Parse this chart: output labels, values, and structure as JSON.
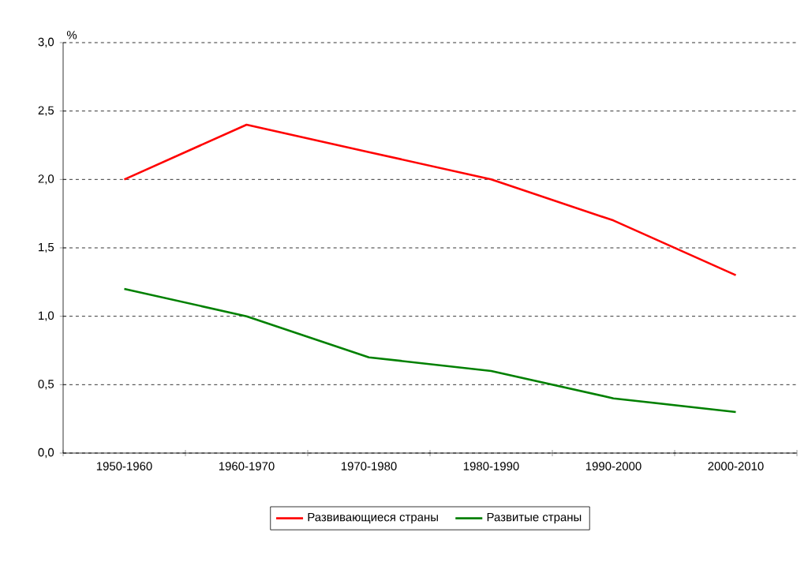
{
  "chart_data": {
    "type": "line",
    "ylabel": "%",
    "categories": [
      "1950-1960",
      "1960-1970",
      "1970-1980",
      "1980-1990",
      "1990-2000",
      "2000-2010"
    ],
    "series": [
      {
        "name": "Развивающиеся страны",
        "color": "#ff0000",
        "values": [
          2.0,
          2.4,
          2.2,
          2.0,
          1.7,
          1.3
        ]
      },
      {
        "name": "Развитые страны",
        "color": "#008000",
        "values": [
          1.2,
          1.0,
          0.7,
          0.6,
          0.4,
          0.3
        ]
      }
    ],
    "ylim": [
      0,
      3
    ],
    "yticks": [
      {
        "value": 0,
        "label": "0,0"
      },
      {
        "value": 0.5,
        "label": "0,5"
      },
      {
        "value": 1,
        "label": "1,0"
      },
      {
        "value": 1.5,
        "label": "1,5"
      },
      {
        "value": 2,
        "label": "2,0"
      },
      {
        "value": 2.5,
        "label": "2,5"
      },
      {
        "value": 3,
        "label": "3,0"
      }
    ],
    "grid": "y",
    "legend": "bottom",
    "marker": "none",
    "line_style": "solid"
  }
}
